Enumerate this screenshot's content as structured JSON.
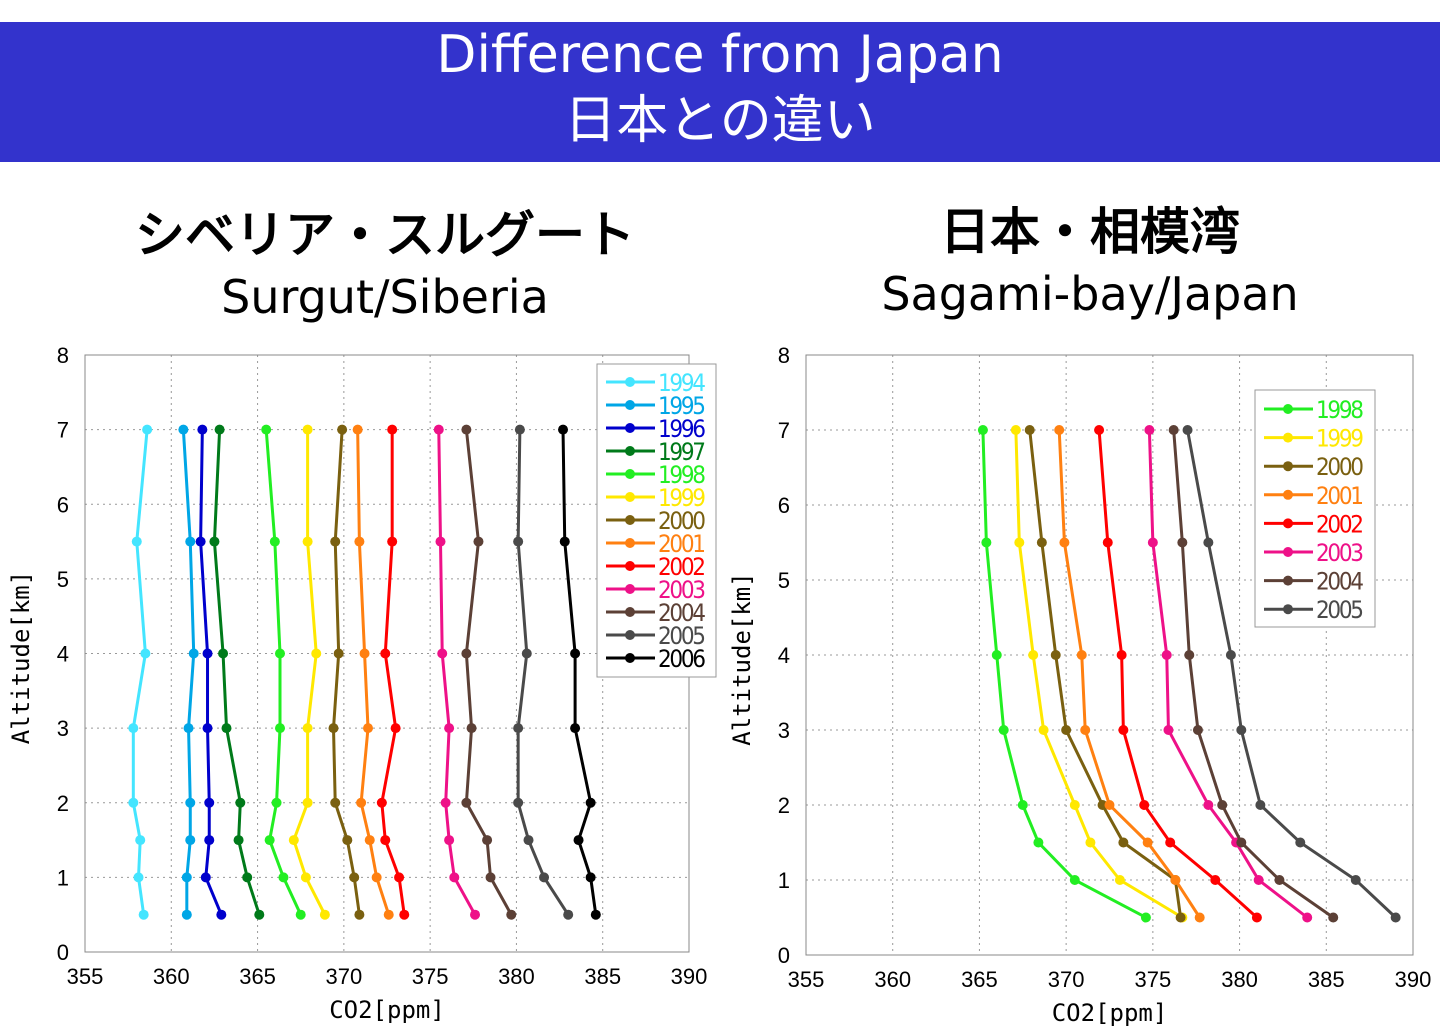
{
  "header": {
    "title_en": "Difference from Japan",
    "title_jp": "日本との違い"
  },
  "chart_data": [
    {
      "type": "line",
      "title_jp": "シベリア・スルグート",
      "title_en": "Surgut/Siberia",
      "xlabel": "CO2[ppm]",
      "ylabel": "Altitude[km]",
      "xlim": [
        355,
        390
      ],
      "ylim": [
        0,
        8
      ],
      "xticks": [
        355,
        360,
        365,
        370,
        375,
        380,
        385,
        390
      ],
      "yticks": [
        0,
        1,
        2,
        3,
        4,
        5,
        6,
        7,
        8
      ],
      "grid": true,
      "legend": "top-right",
      "altitudes": [
        7,
        5.5,
        4,
        3,
        2,
        1.5,
        1,
        0.5
      ],
      "series": [
        {
          "name": "1994",
          "color": "#44E5FF",
          "values": [
            358.6,
            358.0,
            358.5,
            357.8,
            357.8,
            358.2,
            358.1,
            358.4
          ]
        },
        {
          "name": "1995",
          "color": "#00A6E6",
          "values": [
            360.7,
            361.1,
            361.3,
            361.0,
            361.1,
            361.1,
            360.9,
            360.9
          ]
        },
        {
          "name": "1996",
          "color": "#0000CC",
          "values": [
            361.8,
            361.7,
            362.1,
            362.1,
            362.2,
            362.2,
            362.0,
            362.9
          ]
        },
        {
          "name": "1997",
          "color": "#007A1A",
          "values": [
            362.8,
            362.5,
            363.0,
            363.2,
            364.0,
            363.9,
            364.4,
            365.1
          ]
        },
        {
          "name": "1998",
          "color": "#22EE22",
          "values": [
            365.5,
            366.0,
            366.3,
            366.3,
            366.1,
            365.7,
            366.5,
            367.5
          ]
        },
        {
          "name": "1999",
          "color": "#FFE800",
          "values": [
            367.9,
            367.9,
            368.4,
            367.9,
            367.9,
            367.1,
            367.8,
            368.9
          ]
        },
        {
          "name": "2000",
          "color": "#7A6010",
          "values": [
            369.9,
            369.5,
            369.7,
            369.4,
            369.5,
            370.2,
            370.6,
            370.9
          ]
        },
        {
          "name": "2001",
          "color": "#FF8011",
          "values": [
            370.8,
            370.9,
            371.2,
            371.4,
            371.0,
            371.5,
            371.9,
            372.6
          ]
        },
        {
          "name": "2002",
          "color": "#FF0000",
          "values": [
            372.8,
            372.8,
            372.4,
            373.0,
            372.2,
            372.4,
            373.2,
            373.5
          ]
        },
        {
          "name": "2003",
          "color": "#EE1188",
          "values": [
            375.5,
            375.6,
            375.7,
            376.1,
            375.9,
            376.1,
            376.4,
            377.6
          ]
        },
        {
          "name": "2004",
          "color": "#5C4036",
          "values": [
            377.1,
            377.8,
            377.1,
            377.4,
            377.1,
            378.3,
            378.5,
            379.7
          ]
        },
        {
          "name": "2005",
          "color": "#4A4A4A",
          "values": [
            380.2,
            380.1,
            380.6,
            380.1,
            380.1,
            380.7,
            381.6,
            383.0
          ]
        },
        {
          "name": "2006",
          "color": "#000000",
          "values": [
            382.7,
            382.8,
            383.4,
            383.4,
            384.3,
            383.6,
            384.3,
            384.6
          ]
        }
      ]
    },
    {
      "type": "line",
      "title_jp": "日本・相模湾",
      "title_en": "Sagami-bay/Japan",
      "xlabel": "CO2[ppm]",
      "ylabel": "Altitude[km]",
      "xlim": [
        355,
        390
      ],
      "ylim": [
        0,
        8
      ],
      "xticks": [
        355,
        360,
        365,
        370,
        375,
        380,
        385,
        390
      ],
      "yticks": [
        0,
        1,
        2,
        3,
        4,
        5,
        6,
        7,
        8
      ],
      "grid": true,
      "legend": "top-right",
      "altitudes": [
        7,
        5.5,
        4,
        3,
        2,
        1.5,
        1,
        0.5
      ],
      "series": [
        {
          "name": "1998",
          "color": "#22EE22",
          "values": [
            365.2,
            365.4,
            366.0,
            366.4,
            367.5,
            368.4,
            370.5,
            374.6
          ]
        },
        {
          "name": "1999",
          "color": "#FFE800",
          "values": [
            367.1,
            367.3,
            368.1,
            368.7,
            370.5,
            371.4,
            373.1,
            376.7
          ]
        },
        {
          "name": "2000",
          "color": "#7A6010",
          "values": [
            367.9,
            368.6,
            369.4,
            370.0,
            372.1,
            373.3,
            376.3,
            376.6
          ]
        },
        {
          "name": "2001",
          "color": "#FF8011",
          "values": [
            369.6,
            369.9,
            370.9,
            371.1,
            372.5,
            374.7,
            376.3,
            377.7
          ]
        },
        {
          "name": "2002",
          "color": "#FF0000",
          "values": [
            371.9,
            372.4,
            373.2,
            373.3,
            374.5,
            376.0,
            378.6,
            381.0
          ]
        },
        {
          "name": "2003",
          "color": "#EE1188",
          "values": [
            374.8,
            375.0,
            375.8,
            375.9,
            378.2,
            379.8,
            381.1,
            383.9
          ]
        },
        {
          "name": "2004",
          "color": "#5C4036",
          "values": [
            376.2,
            376.7,
            377.1,
            377.6,
            379.0,
            380.1,
            382.3,
            385.4
          ]
        },
        {
          "name": "2005",
          "color": "#4A4A4A",
          "values": [
            377.0,
            378.2,
            379.5,
            380.1,
            381.2,
            383.5,
            386.7,
            389.0
          ]
        }
      ]
    }
  ]
}
